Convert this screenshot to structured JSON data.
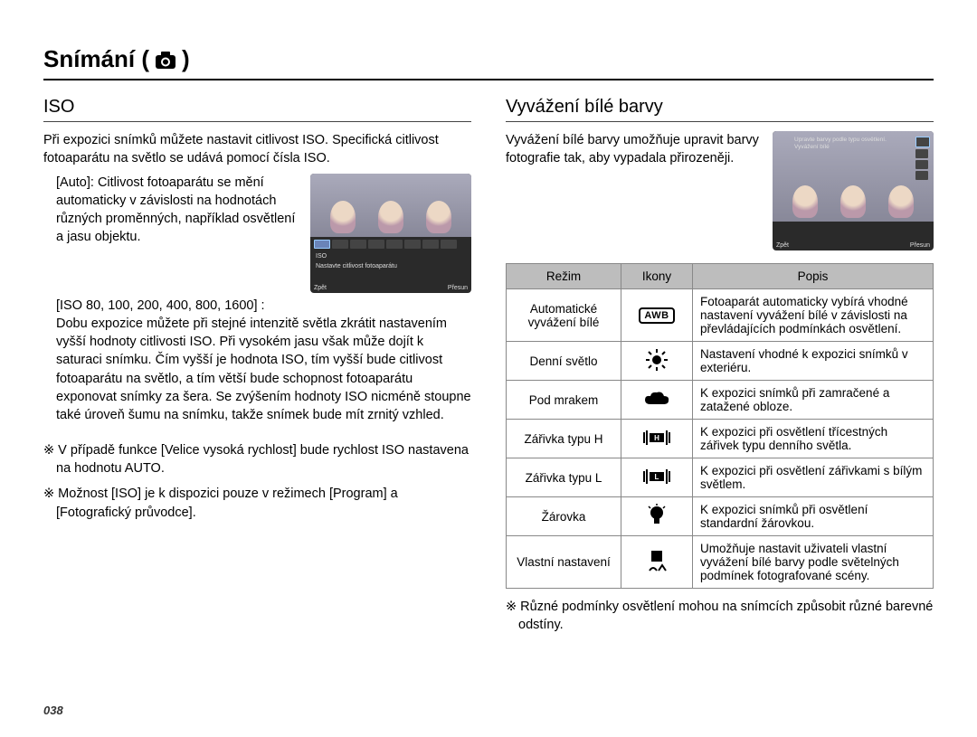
{
  "page_title": "Snímání (",
  "page_title_suffix": " )",
  "left": {
    "section_title": "ISO",
    "intro": "Při expozici snímků můžete nastavit citlivost ISO. Specifická citlivost fotoaparátu na světlo se udává pomocí čísla ISO.",
    "auto_label": "[Auto]:",
    "auto_text": "Citlivost fotoaparátu se mění automaticky v závislosti na hodnotách různých proměnných, například osvětlení a jasu objektu.",
    "iso_label": "[ISO 80, 100, 200, 400, 800, 1600] :",
    "iso_text": "Dobu expozice můžete při stejné intenzitě světla zkrátit nastavením vyšší hodnoty citlivosti ISO. Při vysokém jasu však může dojít k saturaci snímku. Čím vyšší je hodnota ISO, tím vyšší bude citlivost fotoaparátu na světlo, a tím větší bude schopnost fotoaparátu exponovat snímky za šera. Se zvýšením hodnoty ISO nicméně stoupne také úroveň šumu na snímku, takže snímek bude mít zrnitý vzhled.",
    "note1": "※ V případě funkce [Velice vysoká rychlost] bude rychlost ISO nastavena na hodnotu AUTO.",
    "note2": "※ Možnost [ISO] je k dispozici pouze v režimech [Program] a [Fotografický průvodce].",
    "lcd_caption": "Nastavte citlivost fotoaparátu",
    "lcd_back": "Zpět",
    "lcd_move": "Přesun",
    "lcd_iso_label": "ISO"
  },
  "right": {
    "section_title": "Vyvážení bílé barvy",
    "intro": "Vyvážení bílé barvy umožňuje upravit barvy fotografie tak, aby vypadala přirozeněji.",
    "lcd_caption1": "Upravte barvy podle typu osvětlení.",
    "lcd_caption2": "Vyvážení bílé",
    "lcd_back": "Zpět",
    "lcd_move": "Přesun",
    "table": {
      "headers": [
        "Režim",
        "Ikony",
        "Popis"
      ],
      "rows": [
        {
          "mode": "Automatické vyvážení bílé",
          "icon": "awb",
          "desc": "Fotoaparát automaticky vybírá vhodné nastavení vyvážení bílé v závislosti na převládajících podmínkách osvětlení."
        },
        {
          "mode": "Denní světlo",
          "icon": "sun",
          "desc": "Nastavení vhodné k expozici snímků v exteriéru."
        },
        {
          "mode": "Pod mrakem",
          "icon": "cloud",
          "desc": "K expozici snímků při zamračené a zatažené obloze."
        },
        {
          "mode": "Zářivka typu H",
          "icon": "fluoH",
          "desc": "K expozici při osvětlení třícestných zářivek typu denního světla."
        },
        {
          "mode": "Zářivka typu L",
          "icon": "fluoL",
          "desc": "K expozici při osvětlení zářivkami s bílým světlem."
        },
        {
          "mode": "Žárovka",
          "icon": "bulb",
          "desc": "K expozici snímků při osvětlení standardní žárovkou."
        },
        {
          "mode": "Vlastní nastavení",
          "icon": "custom",
          "desc": "Umožňuje nastavit uživateli vlastní vyvážení bílé barvy podle světelných podmínek fotografované scény."
        }
      ]
    },
    "footnote": "※ Různé podmínky osvětlení mohou na snímcích způsobit různé barevné odstíny."
  },
  "page_number": "038"
}
